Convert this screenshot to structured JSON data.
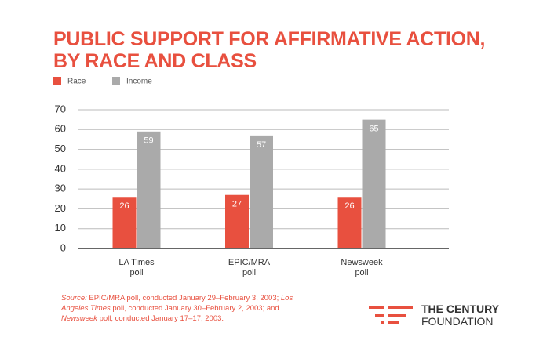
{
  "chart_data": {
    "type": "bar",
    "title": "PUBLIC SUPPORT FOR AFFIRMATIVE ACTION,\nBY RACE AND CLASS",
    "categories": [
      "LA Times\npoll",
      "EPIC/MRA\npoll",
      "Newsweek\npoll"
    ],
    "series": [
      {
        "name": "Race",
        "color": "#e8503f",
        "values": [
          26,
          27,
          26
        ]
      },
      {
        "name": "Income",
        "color": "#aaaaaa",
        "values": [
          59,
          57,
          65
        ]
      }
    ],
    "ylim": [
      0,
      70
    ],
    "yticks": [
      0,
      10,
      20,
      30,
      40,
      50,
      60,
      70
    ],
    "grid": true
  },
  "source": [
    {
      "text": "Source:",
      "italic": true
    },
    {
      "text": " EPIC/MRA poll, conducted January 29–February 3, 2003; ",
      "italic": false
    },
    {
      "text": "Los Angeles Times",
      "italic": true
    },
    {
      "text": " poll, conducted January 30–February 2, 2003; and ",
      "italic": false
    },
    {
      "text": "Newsweek",
      "italic": true
    },
    {
      "text": " poll, conducted January 17–17, 2003.",
      "italic": false
    }
  ],
  "logo": {
    "line1": "THE CENTURY",
    "line2": "FOUNDATION"
  }
}
